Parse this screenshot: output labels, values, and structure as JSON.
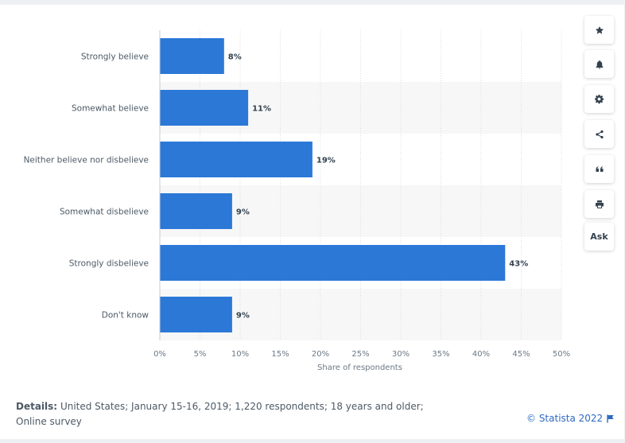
{
  "chart_data": {
    "type": "bar",
    "orientation": "horizontal",
    "categories": [
      "Strongly believe",
      "Somewhat believe",
      "Neither believe nor disbelieve",
      "Somewhat disbelieve",
      "Strongly disbelieve",
      "Don't know"
    ],
    "values": [
      8,
      11,
      19,
      9,
      43,
      9
    ],
    "value_labels": [
      "8%",
      "11%",
      "19%",
      "9%",
      "43%",
      "9%"
    ],
    "xlabel": "Share of respondents",
    "xlim": [
      0,
      50
    ],
    "xticks": [
      0,
      5,
      10,
      15,
      20,
      25,
      30,
      35,
      40,
      45,
      50
    ],
    "xtick_labels": [
      "0%",
      "5%",
      "10%",
      "15%",
      "20%",
      "25%",
      "30%",
      "35%",
      "40%",
      "45%",
      "50%"
    ],
    "bar_color": "#2b78d7",
    "grid": true
  },
  "footer": {
    "details_label": "Details:",
    "details_text": "United States; January 15-16, 2019; 1,220 respondents; 18 years and older; Online survey",
    "copyright": "© Statista 2022"
  },
  "sidebar": {
    "buttons": [
      {
        "icon": "star-icon",
        "name": "favorite-button"
      },
      {
        "icon": "bell-icon",
        "name": "notification-button"
      },
      {
        "icon": "gear-icon",
        "name": "settings-button"
      },
      {
        "icon": "share-icon",
        "name": "share-button"
      },
      {
        "icon": "quote-icon",
        "name": "cite-button"
      },
      {
        "icon": "print-icon",
        "name": "print-button"
      }
    ],
    "ask_label": "Ask"
  },
  "colors": {
    "accent": "#2d6ac2",
    "bar": "#2b78d7",
    "stripe": "#f7f7f7"
  }
}
